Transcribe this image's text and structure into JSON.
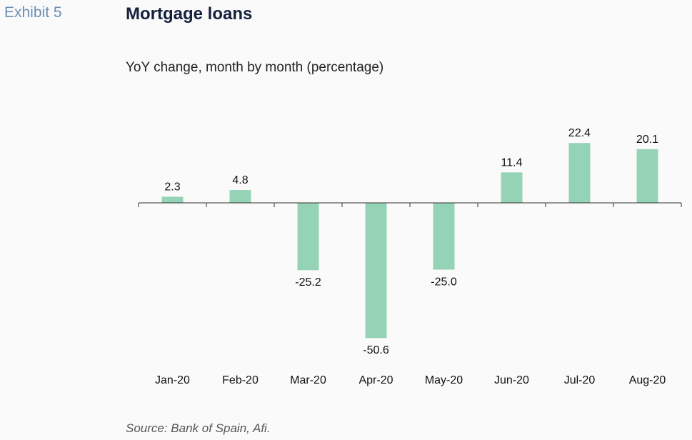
{
  "exhibit_label": "Exhibit 5",
  "source_note": "Source: Bank of Spain, Afi.",
  "colors": {
    "bar": "#95d3b6",
    "axis": "#333333"
  },
  "chart_data": {
    "type": "bar",
    "title": "Mortgage loans",
    "subtitle": "YoY change, month by month (percentage)",
    "categories": [
      "Jan-20",
      "Feb-20",
      "Mar-20",
      "Apr-20",
      "May-20",
      "Jun-20",
      "Jul-20",
      "Aug-20"
    ],
    "values": [
      2.3,
      4.8,
      -25.2,
      -50.6,
      -25.0,
      11.4,
      22.4,
      20.1
    ],
    "data_labels": [
      "2.3",
      "4.8",
      "-25.2",
      "-50.6",
      "-25.0",
      "11.4",
      "22.4",
      "20.1"
    ],
    "xlabel": "",
    "ylabel": "",
    "grid": false,
    "legend": "none"
  }
}
